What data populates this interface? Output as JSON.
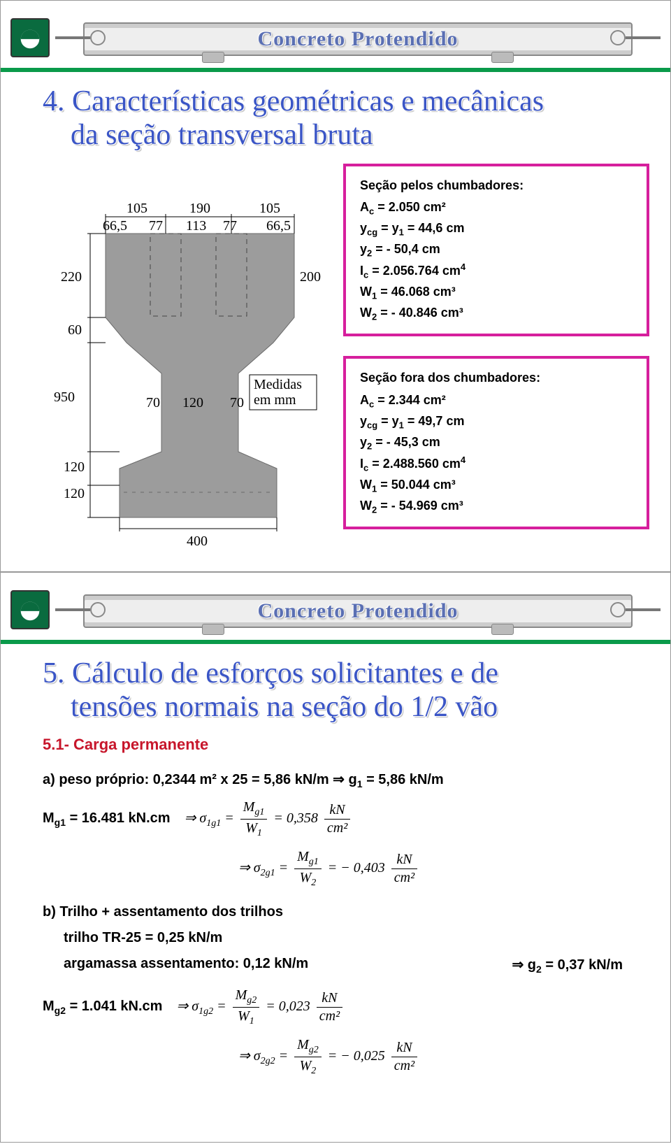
{
  "banner_title": "Concreto Protendido",
  "slide4": {
    "title_line1": "4. Características geométricas e mecânicas",
    "title_line2": "da seção transversal bruta",
    "drawing": {
      "dims_top": [
        "105",
        "190",
        "105"
      ],
      "dims_top2": [
        "66,5",
        "77",
        "113",
        "77",
        "66,5"
      ],
      "dim_left_220": "220",
      "dim_left_60": "60",
      "dim_left_950": "950",
      "dim_left_120a": "120",
      "dim_left_120b": "120",
      "dim_mid_200": "200",
      "dim_mid_70a": "70",
      "dim_mid_120": "120",
      "dim_mid_70b": "70",
      "medidas": "Medidas",
      "emmm": "em mm",
      "dim_bottom_400": "400"
    },
    "box1": {
      "title": "Seção pelos chumbadores:",
      "lines": [
        "A<sub>c</sub> = 2.050 cm²",
        "y<sub>cg</sub> = y<sub>1</sub> = 44,6 cm",
        "y<sub>2</sub> = - 50,4 cm",
        "I<sub>c</sub> = 2.056.764 cm<sup>4</sup>",
        "W<sub>1</sub> = 46.068 cm³",
        "W<sub>2</sub> = - 40.846 cm³"
      ]
    },
    "box2": {
      "title": "Seção fora dos chumbadores:",
      "lines": [
        "A<sub>c</sub> = 2.344 cm²",
        "y<sub>cg</sub> = y<sub>1</sub> = 49,7 cm",
        "y<sub>2</sub> = - 45,3 cm",
        "I<sub>c</sub> = 2.488.560 cm<sup>4</sup>",
        "W<sub>1</sub> = 50.044 cm³",
        "W<sub>2</sub> = - 54.969 cm³"
      ]
    }
  },
  "slide5": {
    "title_line1": "5. Cálculo de esforços solicitantes e de",
    "title_line2": "tensões normais na seção do 1/2 vão",
    "subhead": "5.1- Carga permanente",
    "a_line": "a) peso próprio: 0,2344 m² x 25 = 5,86 kN/m  ⇒ g<sub>1</sub> = 5,86 kN/m",
    "mg1_label": "M<sub>g1</sub> = 16.481 kN.cm",
    "sigma1g1": {
      "lhs": "⇒ σ<sub>1g1</sub> =",
      "num": "M<sub>g1</sub>",
      "den": "W<sub>1</sub>",
      "val": "= 0,358",
      "unit_num": "kN",
      "unit_den": "cm²"
    },
    "sigma2g1": {
      "lhs": "⇒ σ<sub>2g1</sub> =",
      "num": "M<sub>g1</sub>",
      "den": "W<sub>2</sub>",
      "val": "= − 0,403",
      "unit_num": "kN",
      "unit_den": "cm²"
    },
    "b_line1": "b) Trilho + assentamento dos trilhos",
    "b_line2": "trilho TR-25 = 0,25 kN/m",
    "b_line3": "argamassa assentamento: 0,12 kN/m",
    "b_right": "⇒ g<sub>2</sub> = 0,37 kN/m",
    "mg2_label": "M<sub>g2</sub> = 1.041 kN.cm",
    "sigma1g2": {
      "lhs": "⇒ σ<sub>1g2</sub> =",
      "num": "M<sub>g2</sub>",
      "den": "W<sub>1</sub>",
      "val": "= 0,023",
      "unit_num": "kN",
      "unit_den": "cm²"
    },
    "sigma2g2": {
      "lhs": "⇒ σ<sub>2g2</sub> =",
      "num": "M<sub>g2</sub>",
      "den": "W<sub>2</sub>",
      "val": "= − 0,025",
      "unit_num": "kN",
      "unit_den": "cm²"
    }
  },
  "colors": {
    "title_blue": "#3a55c6",
    "magenta": "#d61f9d",
    "red": "#c7162b",
    "green": "#0a9a4a",
    "grey_fill": "#9c9c9c",
    "grey_stroke": "#6a6a6a"
  }
}
